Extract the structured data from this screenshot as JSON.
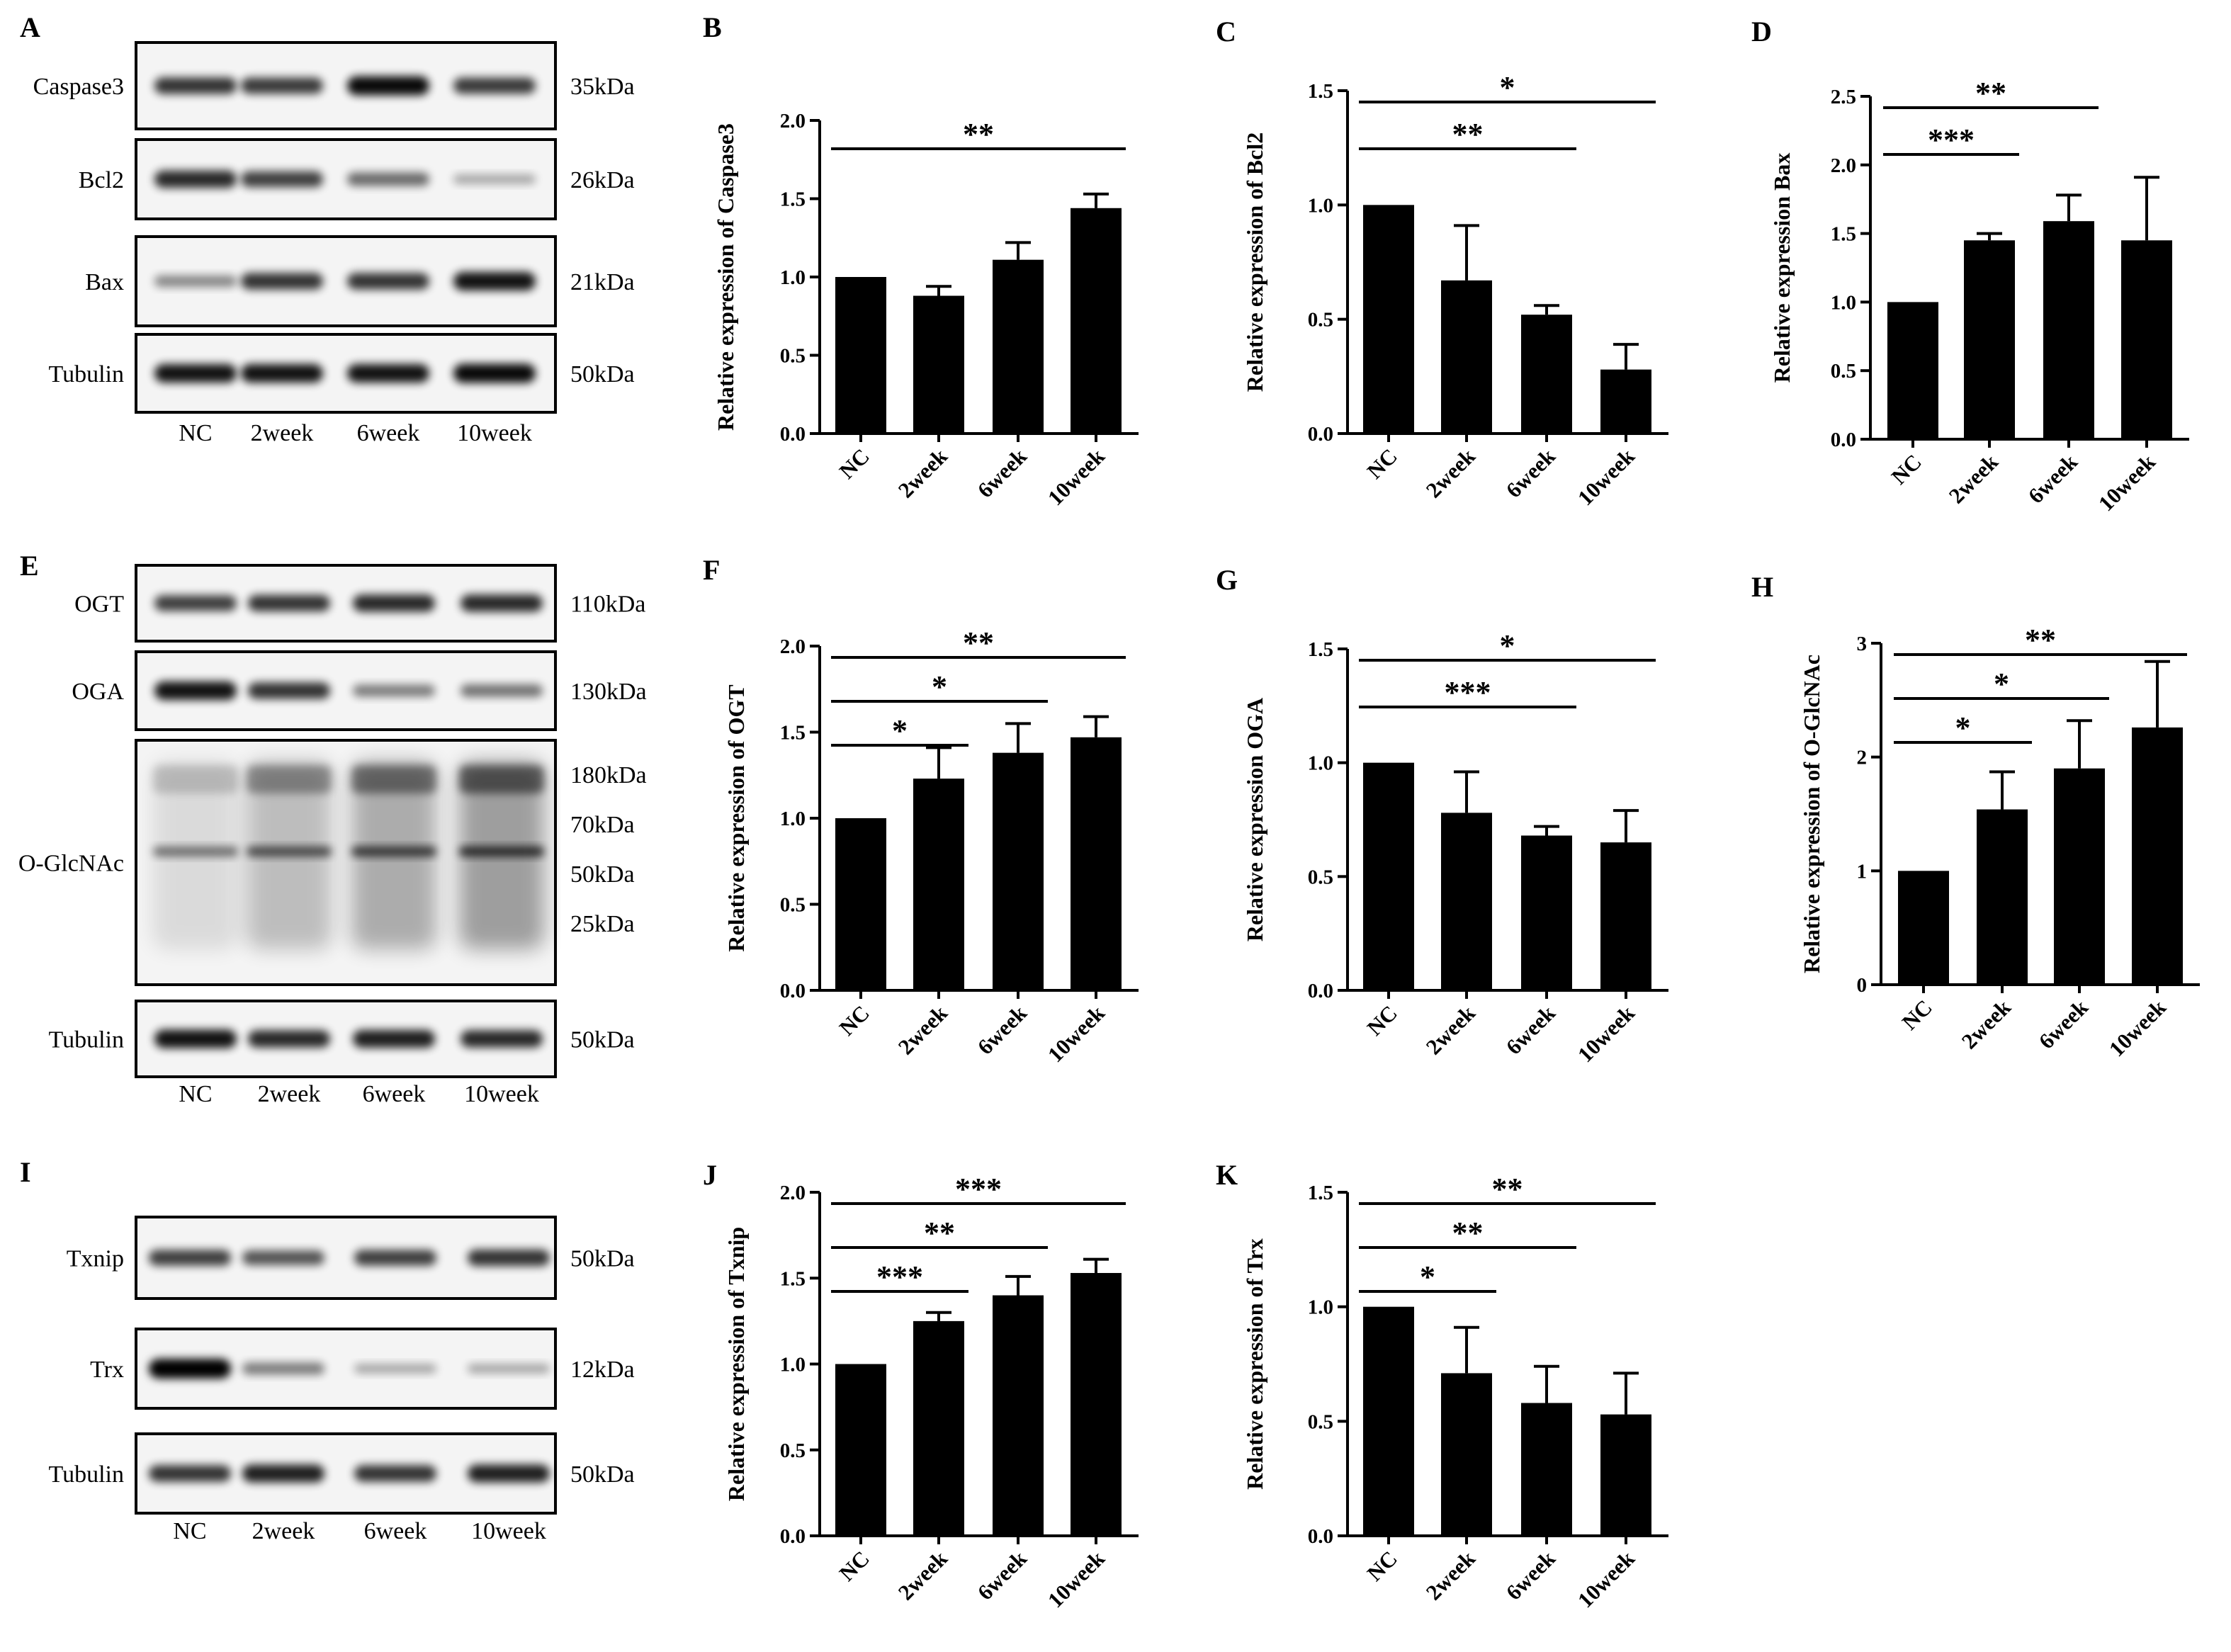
{
  "colors": {
    "bar": "#000000",
    "frame": "#000000",
    "blot_bg": "#f4f4f4"
  },
  "blots": [
    {
      "panel": "A",
      "lanes": [
        "NC",
        "2week",
        "6week",
        "10week"
      ],
      "bands": [
        {
          "label": "Caspase3",
          "kda": "35kDa",
          "intensity": [
            0.75,
            0.72,
            0.95,
            0.72
          ]
        },
        {
          "label": "Bcl2",
          "kda": "26kDa",
          "intensity": [
            0.8,
            0.7,
            0.5,
            0.2
          ]
        },
        {
          "label": "Bax",
          "kda": "21kDa",
          "intensity": [
            0.35,
            0.75,
            0.75,
            0.9
          ]
        },
        {
          "label": "Tubulin",
          "kda": "50kDa",
          "intensity": [
            0.9,
            0.9,
            0.9,
            0.95
          ]
        }
      ]
    },
    {
      "panel": "E",
      "lanes": [
        "NC",
        "2week",
        "6week",
        "10week"
      ],
      "bands": [
        {
          "label": "OGT",
          "kda": "110kDa",
          "intensity": [
            0.7,
            0.75,
            0.8,
            0.8
          ]
        },
        {
          "label": "OGA",
          "kda": "130kDa",
          "intensity": [
            0.9,
            0.75,
            0.4,
            0.45
          ]
        },
        {
          "label": "O-GlcNAc",
          "kda_list": [
            "180kDa",
            "70kDa",
            "50kDa",
            "25kDa"
          ],
          "smear": [
            0.15,
            0.5,
            0.7,
            0.85
          ]
        },
        {
          "label": "Tubulin",
          "kda": "50kDa",
          "intensity": [
            0.9,
            0.8,
            0.85,
            0.8
          ]
        }
      ]
    },
    {
      "panel": "I",
      "lanes": [
        "NC",
        "2week",
        "6week",
        "10week"
      ],
      "bands": [
        {
          "label": "Txnip",
          "kda": "50kDa",
          "intensity": [
            0.7,
            0.6,
            0.7,
            0.75
          ]
        },
        {
          "label": "Trx",
          "kda": "12kDa",
          "intensity": [
            1.0,
            0.4,
            0.2,
            0.2
          ]
        },
        {
          "label": "Tubulin",
          "kda": "50kDa",
          "intensity": [
            0.75,
            0.85,
            0.75,
            0.85
          ]
        }
      ]
    }
  ],
  "chart_data": [
    {
      "panel": "B",
      "type": "bar",
      "ylabel": "Relative expression of Caspase3",
      "categories": [
        "NC",
        "2week",
        "6week",
        "10week"
      ],
      "values": [
        1.0,
        0.88,
        1.11,
        1.44
      ],
      "errors": [
        0,
        0.06,
        0.11,
        0.09
      ],
      "ylim": [
        0,
        2.0
      ],
      "yticks": [
        "0.0",
        "0.5",
        "1.0",
        "1.5",
        "2.0"
      ],
      "significance": [
        {
          "from": 0,
          "to": 3,
          "label": "**"
        }
      ]
    },
    {
      "panel": "C",
      "type": "bar",
      "ylabel": "Relative expression of Bcl2",
      "categories": [
        "NC",
        "2week",
        "6week",
        "10week"
      ],
      "values": [
        1.0,
        0.67,
        0.52,
        0.28
      ],
      "errors": [
        0,
        0.24,
        0.04,
        0.11
      ],
      "ylim": [
        0,
        1.5
      ],
      "yticks": [
        "0.0",
        "0.5",
        "1.0",
        "1.5"
      ],
      "significance": [
        {
          "from": 0,
          "to": 3,
          "label": "*"
        },
        {
          "from": 0,
          "to": 2,
          "label": "**"
        }
      ]
    },
    {
      "panel": "D",
      "type": "bar",
      "ylabel": "Relative expression Bax",
      "categories": [
        "NC",
        "2week",
        "6week",
        "10week"
      ],
      "values": [
        1.0,
        1.45,
        1.59,
        1.45
      ],
      "errors": [
        0,
        0.05,
        0.19,
        0.46
      ],
      "ylim": [
        0,
        2.5
      ],
      "yticks": [
        "0.0",
        "0.5",
        "1.0",
        "1.5",
        "2.0",
        "2.5"
      ],
      "significance": [
        {
          "from": 0,
          "to": 2,
          "label": "**"
        },
        {
          "from": 0,
          "to": 1,
          "label": "***"
        }
      ]
    },
    {
      "panel": "F",
      "type": "bar",
      "ylabel": "Relative expression of OGT",
      "categories": [
        "NC",
        "2week",
        "6week",
        "10week"
      ],
      "values": [
        1.0,
        1.23,
        1.38,
        1.47
      ],
      "errors": [
        0,
        0.18,
        0.17,
        0.12
      ],
      "ylim": [
        0,
        2.0
      ],
      "yticks": [
        "0.0",
        "0.5",
        "1.0",
        "1.5",
        "2.0"
      ],
      "significance": [
        {
          "from": 0,
          "to": 3,
          "label": "**"
        },
        {
          "from": 0,
          "to": 2,
          "label": "*"
        },
        {
          "from": 0,
          "to": 1,
          "label": "*"
        }
      ]
    },
    {
      "panel": "G",
      "type": "bar",
      "ylabel": "Relative expression OGA",
      "categories": [
        "NC",
        "2week",
        "6week",
        "10week"
      ],
      "values": [
        1.0,
        0.78,
        0.68,
        0.65
      ],
      "errors": [
        0,
        0.18,
        0.04,
        0.14
      ],
      "ylim": [
        0,
        1.5
      ],
      "yticks": [
        "0.0",
        "0.5",
        "1.0",
        "1.5"
      ],
      "significance": [
        {
          "from": 0,
          "to": 3,
          "label": "*"
        },
        {
          "from": 0,
          "to": 2,
          "label": "***"
        }
      ]
    },
    {
      "panel": "H",
      "type": "bar",
      "ylabel": "Relative expression of O-GlcNAc",
      "categories": [
        "NC",
        "2week",
        "6week",
        "10week"
      ],
      "values": [
        1.0,
        1.54,
        1.9,
        2.26
      ],
      "errors": [
        0,
        0.33,
        0.42,
        0.58
      ],
      "ylim": [
        0,
        3
      ],
      "yticks": [
        "0",
        "1",
        "2",
        "3"
      ],
      "significance": [
        {
          "from": 0,
          "to": 3,
          "label": "**"
        },
        {
          "from": 0,
          "to": 2,
          "label": "*"
        },
        {
          "from": 0,
          "to": 1,
          "label": "*"
        }
      ]
    },
    {
      "panel": "J",
      "type": "bar",
      "ylabel": "Relative expression of Txnip",
      "categories": [
        "NC",
        "2week",
        "6week",
        "10week"
      ],
      "values": [
        1.0,
        1.25,
        1.4,
        1.53
      ],
      "errors": [
        0,
        0.05,
        0.11,
        0.08
      ],
      "ylim": [
        0,
        2.0
      ],
      "yticks": [
        "0.0",
        "0.5",
        "1.0",
        "1.5",
        "2.0"
      ],
      "significance": [
        {
          "from": 0,
          "to": 3,
          "label": "***"
        },
        {
          "from": 0,
          "to": 2,
          "label": "**"
        },
        {
          "from": 0,
          "to": 1,
          "label": "***"
        }
      ]
    },
    {
      "panel": "K",
      "type": "bar",
      "ylabel": "Relative expression of Trx",
      "categories": [
        "NC",
        "2week",
        "6week",
        "10week"
      ],
      "values": [
        1.0,
        0.71,
        0.58,
        0.53
      ],
      "errors": [
        0,
        0.2,
        0.16,
        0.18
      ],
      "ylim": [
        0,
        1.5
      ],
      "yticks": [
        "0.0",
        "0.5",
        "1.0",
        "1.5"
      ],
      "significance": [
        {
          "from": 0,
          "to": 3,
          "label": "**"
        },
        {
          "from": 0,
          "to": 2,
          "label": "**"
        },
        {
          "from": 0,
          "to": 1,
          "label": "*"
        }
      ]
    }
  ]
}
